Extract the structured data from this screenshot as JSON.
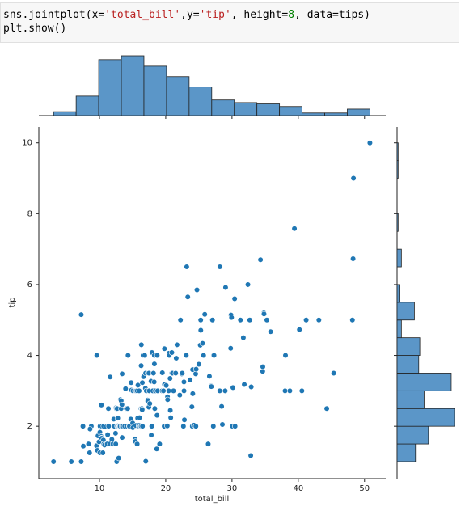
{
  "code": [
    [
      "sns.jointplot(x=",
      "'total_bill'",
      ",y=",
      "'tip'",
      ", height=",
      "8",
      ", data=tips)"
    ],
    [
      "plt.show()"
    ]
  ],
  "chart_data": [
    {
      "type": "scatter",
      "xlabel": "total_bill",
      "ylabel": "tip",
      "color": "#1f77b4",
      "xlim": [
        0.85,
        53.2
      ],
      "ylim": [
        0.52,
        10.45
      ],
      "xticks": [
        10,
        20,
        30,
        40,
        50
      ],
      "yticks": [
        2,
        4,
        6,
        8,
        10
      ],
      "x": [
        3.07,
        5.75,
        7.25,
        7.25,
        8.77,
        7.51,
        7.56,
        8.35,
        8.51,
        8.58,
        9.55,
        9.6,
        9.68,
        9.78,
        9.94,
        10.07,
        10.07,
        10.09,
        10.27,
        10.29,
        10.33,
        10.33,
        10.34,
        10.34,
        10.51,
        10.59,
        10.63,
        10.65,
        10.77,
        11.02,
        11.17,
        11.24,
        11.35,
        11.38,
        11.59,
        11.61,
        11.87,
        12.03,
        12.16,
        12.26,
        12.43,
        12.46,
        12.48,
        12.54,
        12.6,
        12.66,
        12.69,
        12.74,
        12.76,
        12.9,
        13.0,
        13.03,
        13.13,
        13.16,
        13.27,
        13.28,
        13.37,
        13.39,
        13.42,
        13.42,
        13.51,
        13.81,
        13.94,
        14.07,
        14.15,
        14.26,
        14.31,
        14.48,
        14.52,
        14.73,
        14.78,
        14.83,
        15.01,
        15.04,
        15.06,
        15.36,
        15.38,
        15.42,
        15.48,
        15.53,
        15.69,
        15.69,
        15.77,
        15.81,
        15.95,
        15.98,
        15.98,
        16.0,
        16.04,
        16.21,
        16.27,
        16.29,
        16.31,
        16.32,
        16.4,
        16.45,
        16.47,
        16.49,
        16.58,
        16.66,
        16.82,
        16.93,
        16.97,
        16.99,
        17.07,
        17.26,
        17.29,
        17.31,
        17.46,
        17.47,
        17.51,
        17.59,
        17.78,
        17.82,
        17.89,
        17.92,
        18.04,
        18.15,
        18.24,
        18.26,
        18.28,
        18.29,
        18.35,
        18.43,
        18.64,
        18.69,
        18.71,
        18.78,
        19.08,
        19.44,
        19.49,
        19.65,
        19.77,
        19.81,
        19.82,
        20.08,
        20.23,
        20.27,
        20.29,
        20.45,
        20.49,
        20.53,
        20.65,
        20.69,
        20.76,
        20.9,
        20.92,
        21.01,
        21.16,
        21.5,
        21.58,
        21.7,
        22.12,
        22.23,
        22.42,
        22.49,
        22.67,
        22.75,
        22.76,
        22.82,
        23.1,
        23.17,
        23.33,
        23.68,
        23.95,
        24.01,
        24.06,
        24.08,
        24.27,
        24.52,
        24.55,
        24.59,
        24.71,
        25.0,
        25.21,
        25.28,
        25.29,
        25.56,
        25.71,
        25.89,
        26.41,
        26.59,
        26.86,
        26.88,
        27.05,
        27.18,
        27.2,
        27.28,
        28.15,
        28.17,
        28.44,
        28.55,
        28.97,
        29.03,
        29.8,
        29.85,
        29.93,
        30.06,
        30.14,
        30.4,
        30.46,
        31.27,
        31.71,
        31.85,
        32.4,
        32.68,
        32.83,
        32.9,
        34.3,
        34.63,
        34.65,
        34.81,
        34.83,
        35.26,
        35.83,
        38.01,
        38.07,
        38.73,
        39.42,
        40.17,
        40.55,
        41.19,
        43.11,
        44.3,
        45.35,
        48.17,
        48.27,
        48.33,
        50.81
      ],
      "values": [
        1.0,
        1.0,
        1.0,
        5.15,
        2.0,
        2.0,
        1.44,
        1.5,
        1.25,
        1.92,
        1.45,
        4.0,
        1.32,
        1.73,
        1.56,
        1.25,
        1.83,
        2.0,
        1.71,
        2.6,
        1.67,
        2.0,
        1.66,
        2.0,
        1.25,
        1.61,
        2.0,
        1.5,
        1.47,
        1.98,
        1.5,
        1.76,
        2.5,
        2.0,
        1.5,
        3.39,
        1.63,
        1.5,
        2.2,
        2.0,
        1.8,
        1.5,
        2.52,
        2.5,
        1.0,
        2.5,
        2.0,
        2.01,
        2.23,
        1.1,
        2.0,
        2.0,
        2.0,
        2.75,
        2.5,
        2.72,
        2.0,
        2.61,
        3.48,
        1.68,
        2.0,
        2.0,
        3.06,
        2.5,
        2.0,
        2.5,
        4.0,
        2.0,
        2.0,
        2.2,
        3.23,
        3.02,
        2.09,
        1.96,
        3.0,
        1.64,
        3.0,
        1.57,
        2.02,
        3.0,
        3.0,
        1.5,
        2.23,
        3.16,
        2.0,
        3.0,
        2.03,
        2.0,
        2.24,
        2.0,
        2.5,
        3.71,
        2.0,
        4.3,
        2.5,
        2.47,
        3.23,
        2.0,
        4.0,
        3.4,
        4.0,
        3.07,
        3.5,
        1.01,
        3.0,
        2.74,
        2.71,
        3.5,
        2.54,
        3.5,
        3.0,
        2.64,
        3.27,
        1.75,
        2.0,
        4.08,
        3.0,
        3.5,
        3.76,
        3.25,
        4.0,
        3.76,
        2.5,
        3.0,
        1.36,
        2.31,
        4.0,
        3.0,
        1.5,
        3.0,
        3.51,
        3.0,
        2.0,
        4.19,
        3.18,
        3.15,
        2.01,
        2.83,
        2.75,
        3.0,
        4.06,
        4.0,
        3.35,
        2.45,
        2.24,
        3.5,
        4.08,
        3.5,
        3.0,
        3.5,
        3.92,
        4.3,
        2.88,
        5.0,
        3.48,
        3.5,
        2.0,
        3.25,
        3.0,
        2.18,
        4.0,
        6.5,
        5.65,
        3.31,
        2.55,
        2.0,
        3.6,
        2.92,
        2.03,
        3.48,
        2.0,
        3.61,
        5.85,
        3.75,
        4.29,
        5.0,
        4.71,
        4.34,
        4.0,
        5.16,
        1.5,
        3.41,
        3.14,
        3.12,
        5.0,
        2.0,
        4.0,
        4.0,
        3.0,
        6.5,
        2.56,
        2.05,
        3.0,
        5.92,
        4.2,
        5.14,
        5.07,
        2.0,
        3.09,
        5.6,
        2.0,
        5.0,
        4.5,
        3.18,
        6.0,
        5.0,
        1.17,
        3.11,
        6.7,
        3.55,
        3.68,
        5.2,
        5.17,
        5.0,
        4.67,
        3.0,
        4.0,
        3.0,
        7.58,
        4.73,
        3.0,
        5.0,
        5.0,
        2.5,
        3.5,
        5.0,
        6.73,
        9.0,
        10.0
      ]
    },
    {
      "type": "histogram",
      "color": "#5b96c8",
      "bins": [
        3.07,
        6.48,
        9.89,
        13.3,
        16.71,
        20.12,
        23.53,
        26.94,
        30.35,
        33.76,
        37.17,
        40.58,
        43.99,
        47.4,
        50.81
      ],
      "values": [
        3,
        15,
        43,
        46,
        38,
        30,
        22,
        12,
        10,
        9,
        7,
        2,
        2,
        5
      ],
      "ylim": [
        0,
        51.6
      ]
    },
    {
      "type": "histogram",
      "orientation": "horizontal",
      "color": "#5b96c8",
      "bins": [
        1,
        1.5,
        2,
        2.5,
        3,
        3.5,
        4,
        4.5,
        5,
        5.5,
        6,
        6.5,
        7,
        7.5,
        8,
        8.5,
        9,
        9.5,
        10
      ],
      "values": [
        17,
        29,
        53,
        25,
        50,
        20,
        21,
        4,
        16,
        2,
        0,
        4,
        0,
        1,
        0,
        0,
        1,
        1
      ],
      "xlim": [
        0,
        59
      ]
    }
  ]
}
